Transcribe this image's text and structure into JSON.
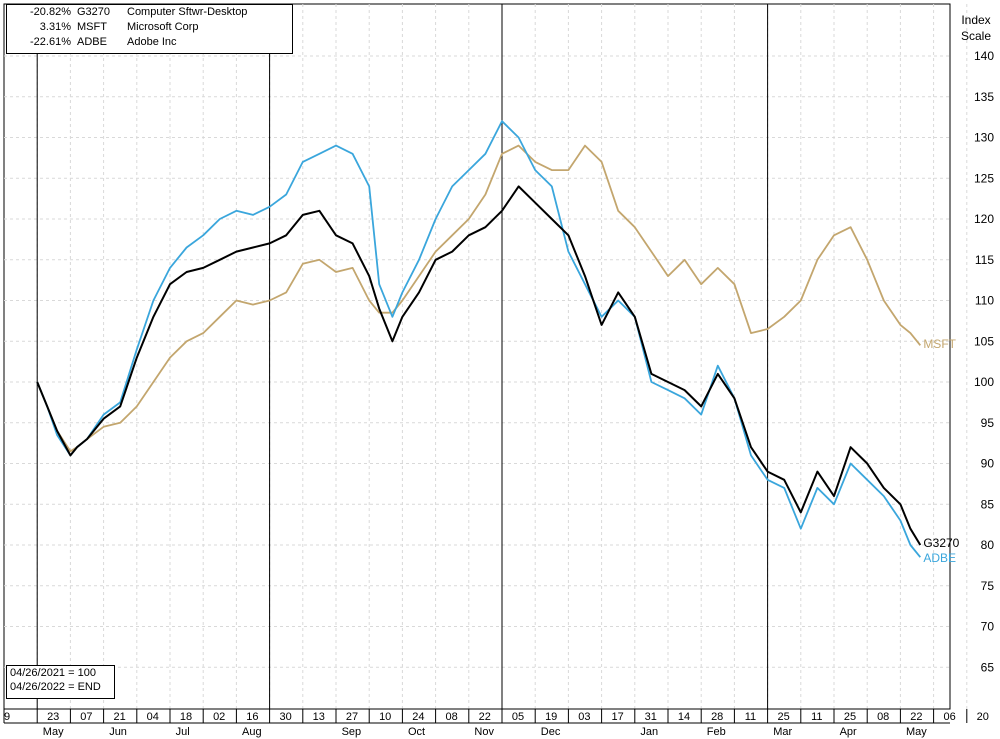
{
  "legend": [
    {
      "pct": "-20.82%",
      "symbol": "G3270",
      "name": "Computer Sftwr-Desktop"
    },
    {
      "pct": "3.31%",
      "symbol": "MSFT",
      "name": "Microsoft Corp"
    },
    {
      "pct": "-22.61%",
      "symbol": "ADBE",
      "name": "Adobe Inc"
    }
  ],
  "base_note": {
    "line1": "04/26/2021 = 100",
    "line2": "04/26/2022 = END"
  },
  "index_scale": {
    "line1": "Index",
    "line2": "Scale"
  },
  "end_labels": {
    "g3270": "G3270",
    "msft": "MSFT",
    "adbe": "ADBE"
  },
  "chart_data": {
    "type": "line",
    "ylim": [
      60,
      145
    ],
    "y_ticks": [
      65,
      70,
      75,
      80,
      85,
      90,
      95,
      100,
      105,
      110,
      115,
      120,
      125,
      130,
      135,
      140
    ],
    "x_tick_labels": [
      "9",
      "23",
      "07",
      "21",
      "04",
      "18",
      "02",
      "16",
      "30",
      "13",
      "27",
      "10",
      "24",
      "08",
      "22",
      "05",
      "19",
      "03",
      "17",
      "31",
      "14",
      "28",
      "11",
      "25",
      "11",
      "25",
      "08",
      "22",
      "06",
      "20"
    ],
    "month_labels": [
      "May",
      "Jun",
      "Jul",
      "Aug",
      "Sep",
      "Oct",
      "Nov",
      "Dec",
      "Jan",
      "Feb",
      "Mar",
      "Apr",
      "May"
    ],
    "month_tick_index": [
      1.5,
      3.5,
      5.5,
      7.5,
      10.5,
      12.5,
      14.5,
      16.5,
      19.5,
      21.5,
      23.5,
      25.5,
      27.5
    ],
    "vertical_markers_tick_index": [
      1,
      8,
      15,
      23
    ],
    "grid": true,
    "colors": {
      "G3270": "#000000",
      "MSFT": "#c3a66e",
      "ADBE": "#3aa6dc"
    },
    "series": [
      {
        "name": "G3270",
        "x": [
          1,
          1.3,
          1.6,
          2,
          2.2,
          2.5,
          3,
          3.5,
          4,
          4.5,
          5,
          5.5,
          6,
          6.5,
          7,
          7.5,
          8,
          8.5,
          9,
          9.5,
          10,
          10.5,
          11,
          11.3,
          11.7,
          12,
          12.5,
          13,
          13.5,
          14,
          14.5,
          15,
          15.5,
          16,
          16.5,
          17,
          17.5,
          18,
          18.5,
          19,
          19.5,
          20,
          20.5,
          21,
          21.5,
          22,
          22.5,
          23,
          23.5,
          24,
          24.5,
          25,
          25.5,
          26,
          26.5,
          27,
          27.3,
          27.6
        ],
        "values": [
          100,
          97,
          94,
          91,
          92,
          93,
          95.5,
          97,
          103,
          108,
          112,
          113.5,
          114,
          115,
          116,
          116.5,
          117,
          118,
          120.5,
          121,
          118,
          117,
          113,
          109,
          105,
          108,
          111,
          115,
          116,
          118,
          119,
          121,
          124,
          122,
          120,
          118,
          113,
          107,
          111,
          108,
          101,
          100,
          99,
          97,
          101,
          98,
          92,
          89,
          88,
          84,
          89,
          86,
          92,
          90,
          87,
          85,
          82,
          80
        ]
      },
      {
        "name": "MSFT",
        "x": [
          1,
          1.3,
          1.6,
          2,
          2.2,
          2.5,
          3,
          3.5,
          4,
          4.5,
          5,
          5.5,
          6,
          6.5,
          7,
          7.5,
          8,
          8.5,
          9,
          9.5,
          10,
          10.5,
          11,
          11.3,
          11.7,
          12,
          12.5,
          13,
          13.5,
          14,
          14.5,
          15,
          15.5,
          16,
          16.5,
          17,
          17.5,
          18,
          18.5,
          19,
          19.5,
          20,
          20.5,
          21,
          21.5,
          22,
          22.5,
          23,
          23.5,
          24,
          24.5,
          25,
          25.5,
          26,
          26.5,
          27,
          27.3,
          27.6
        ],
        "values": [
          100,
          97,
          94,
          91.5,
          92,
          93,
          94.5,
          95,
          97,
          100,
          103,
          105,
          106,
          108,
          110,
          109.5,
          110,
          111,
          114.5,
          115,
          113.5,
          114,
          110,
          108.5,
          108.5,
          110,
          113,
          116,
          118,
          120,
          123,
          128,
          129,
          127,
          126,
          126,
          129,
          127,
          121,
          119,
          116,
          113,
          115,
          112,
          114,
          112,
          106,
          106.5,
          108,
          110,
          115,
          118,
          119,
          115,
          110,
          107,
          106,
          104.5
        ]
      },
      {
        "name": "ADBE",
        "x": [
          1,
          1.3,
          1.6,
          2,
          2.2,
          2.5,
          3,
          3.5,
          4,
          4.5,
          5,
          5.5,
          6,
          6.5,
          7,
          7.5,
          8,
          8.5,
          9,
          9.5,
          10,
          10.5,
          11,
          11.3,
          11.7,
          12,
          12.5,
          13,
          13.5,
          14,
          14.5,
          15,
          15.5,
          16,
          16.5,
          17,
          17.5,
          18,
          18.5,
          19,
          19.5,
          20,
          20.5,
          21,
          21.5,
          22,
          22.5,
          23,
          23.5,
          24,
          24.5,
          25,
          25.5,
          26,
          26.5,
          27,
          27.3,
          27.6
        ],
        "values": [
          100,
          97,
          93.5,
          91,
          92,
          93,
          96,
          97.5,
          104,
          110,
          114,
          116.5,
          118,
          120,
          121,
          120.5,
          121.5,
          123,
          127,
          128,
          129,
          128,
          124,
          112,
          108,
          111,
          115,
          120,
          124,
          126,
          128,
          132,
          130,
          126,
          124,
          116,
          112,
          108,
          110,
          108,
          100,
          99,
          98,
          96,
          102,
          98,
          91,
          88,
          87,
          82,
          87,
          85,
          90,
          88,
          86,
          83,
          80,
          78.5
        ]
      }
    ]
  }
}
